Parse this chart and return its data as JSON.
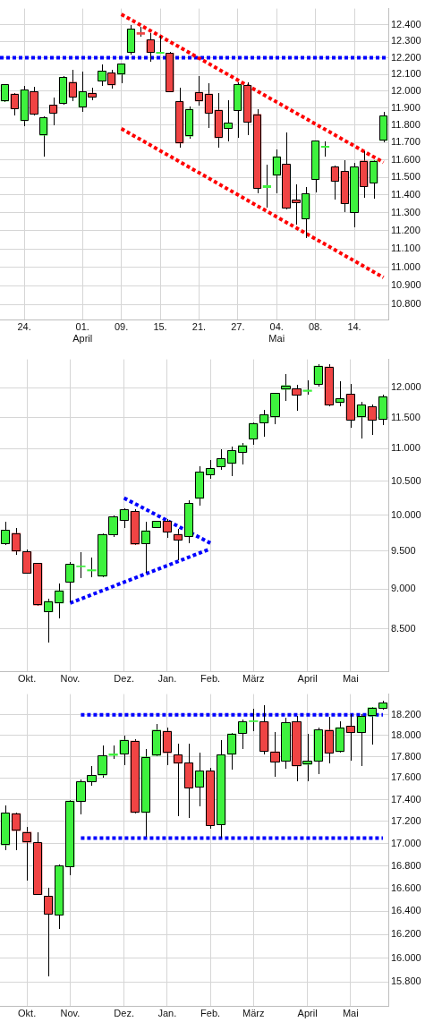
{
  "chart_data": [
    {
      "type": "candlestick",
      "categories": [
        null,
        null,
        "24.",
        null,
        null,
        null,
        null,
        null,
        "01.\nApril",
        null,
        null,
        null,
        "09.",
        null,
        null,
        null,
        "15.",
        null,
        null,
        null,
        "21.",
        null,
        null,
        null,
        "27.",
        null,
        null,
        null,
        "04.\nMai",
        null,
        null,
        null,
        "08.",
        null,
        null,
        null,
        "14.",
        null,
        null,
        null
      ],
      "ohlc": [
        [
          11940,
          12040,
          11940,
          12040
        ],
        [
          11985,
          11985,
          11860,
          11895
        ],
        [
          11825,
          12030,
          11795,
          12010
        ],
        [
          12000,
          12025,
          11860,
          11865
        ],
        [
          11740,
          11850,
          11620,
          11845
        ],
        [
          11920,
          11960,
          11800,
          11870
        ],
        [
          11925,
          12090,
          11925,
          12085
        ],
        [
          12055,
          12125,
          11945,
          11965
        ],
        [
          11905,
          12115,
          11880,
          12000
        ],
        [
          11990,
          12020,
          11950,
          11965
        ],
        [
          12060,
          12155,
          12035,
          12120
        ],
        [
          12110,
          12125,
          12020,
          12035
        ],
        [
          12100,
          12165,
          12050,
          12165
        ],
        [
          12230,
          12395,
          12220,
          12375
        ],
        [
          12355,
          12385,
          12330,
          12340
        ],
        [
          12310,
          12345,
          12180,
          12230
        ],
        [
          12225,
          12330,
          12225,
          12235
        ],
        [
          12230,
          12230,
          11995,
          11995
        ],
        [
          11940,
          12020,
          11675,
          11695
        ],
        [
          11735,
          11905,
          11725,
          11895
        ],
        [
          11995,
          12085,
          11915,
          11940
        ],
        [
          11985,
          12045,
          11785,
          11870
        ],
        [
          11890,
          11985,
          11675,
          11725
        ],
        [
          11780,
          11945,
          11710,
          11815
        ],
        [
          11885,
          12050,
          11730,
          12040
        ],
        [
          12035,
          12050,
          11745,
          11815
        ],
        [
          11865,
          11890,
          11410,
          11435
        ],
        [
          11440,
          11570,
          11330,
          11455
        ],
        [
          11510,
          11655,
          11410,
          11620
        ],
        [
          11575,
          11755,
          11320,
          11325
        ],
        [
          11375,
          11460,
          11235,
          11355
        ],
        [
          11265,
          11440,
          11165,
          11410
        ],
        [
          11485,
          11710,
          11415,
          11710
        ],
        [
          11670,
          11705,
          11620,
          11680
        ],
        [
          11560,
          11565,
          11375,
          11475
        ],
        [
          11535,
          11595,
          11305,
          11350
        ],
        [
          11300,
          11580,
          11220,
          11560
        ],
        [
          11595,
          11645,
          11385,
          11445
        ],
        [
          11465,
          11595,
          11380,
          11595
        ],
        [
          11710,
          11875,
          11705,
          11855
        ]
      ],
      "colors": [
        "#3ef23e",
        "#f04444",
        "#3ef23e",
        "#f04444",
        "#3ef23e",
        "#f04444",
        "#3ef23e",
        "#f04444",
        "#3ef23e",
        "#f04444",
        "#3ef23e",
        "#f04444",
        "#3ef23e",
        "#3ef23e",
        "#f04444",
        "#f04444",
        "#3ef23e",
        "#f04444",
        "#f04444",
        "#3ef23e",
        "#f04444",
        "#f04444",
        "#f04444",
        "#3ef23e",
        "#3ef23e",
        "#f04444",
        "#f04444",
        "#3ef23e",
        "#3ef23e",
        "#f04444",
        "#f04444",
        "#3ef23e",
        "#3ef23e",
        "#3ef23e",
        "#f04444",
        "#f04444",
        "#3ef23e",
        "#f04444",
        "#3ef23e",
        "#3ef23e"
      ],
      "series": [
        {
          "type": "line",
          "color": "#ff0000",
          "line_style": "dotted",
          "values": [
            null,
            null,
            null,
            null,
            null,
            null,
            null,
            null,
            null,
            null,
            null,
            null,
            12465,
            null,
            null,
            null,
            null,
            null,
            null,
            null,
            null,
            null,
            null,
            null,
            null,
            null,
            null,
            null,
            null,
            null,
            null,
            null,
            null,
            null,
            null,
            null,
            null,
            null,
            null,
            11585
          ]
        },
        {
          "type": "line",
          "color": "#ff0000",
          "line_style": "dotted",
          "values": [
            null,
            null,
            null,
            null,
            null,
            null,
            null,
            null,
            null,
            null,
            null,
            null,
            11780,
            null,
            null,
            null,
            null,
            null,
            null,
            null,
            null,
            null,
            null,
            null,
            null,
            null,
            null,
            null,
            null,
            null,
            null,
            null,
            null,
            null,
            null,
            null,
            null,
            null,
            null,
            10945
          ]
        }
      ],
      "ref_lines": [
        {
          "axis": "y",
          "value": 12200,
          "color": "#0000ff",
          "line_style": "dotted"
        }
      ],
      "ylim": [
        10720,
        12500
      ],
      "log": true,
      "grid": true,
      "yticks": [
        {
          "value": 10800,
          "label": "10.800"
        },
        {
          "value": 10900,
          "label": "10.900"
        },
        {
          "value": 11000,
          "label": "11.000"
        },
        {
          "value": 11100,
          "label": "11.100"
        },
        {
          "value": 11200,
          "label": "11.200"
        },
        {
          "value": 11300,
          "label": "11.300"
        },
        {
          "value": 11400,
          "label": "11.400"
        },
        {
          "value": 11500,
          "label": "11.500"
        },
        {
          "value": 11600,
          "label": "11.600"
        },
        {
          "value": 11700,
          "label": "11.700"
        },
        {
          "value": 11800,
          "label": "11.800"
        },
        {
          "value": 11900,
          "label": "11.900"
        },
        {
          "value": 12000,
          "label": "12.000"
        },
        {
          "value": 12100,
          "label": "12.100"
        },
        {
          "value": 12200,
          "label": "12.200"
        },
        {
          "value": 12300,
          "label": "12.300"
        },
        {
          "value": 12400,
          "label": "12.400"
        }
      ]
    },
    {
      "type": "candlestick",
      "categories": [
        null,
        null,
        "Okt.",
        null,
        null,
        null,
        "Nov.",
        null,
        null,
        null,
        null,
        "Dez.",
        null,
        null,
        null,
        "Jan.",
        null,
        null,
        null,
        "Feb.",
        null,
        null,
        null,
        "März",
        null,
        null,
        null,
        null,
        "April",
        null,
        null,
        null,
        "Mai",
        null,
        null,
        null
      ],
      "ohlc": [
        [
          9600,
          9900,
          9585,
          9795
        ],
        [
          9750,
          9815,
          9455,
          9495
        ],
        [
          9495,
          9520,
          9200,
          9200
        ],
        [
          9340,
          9340,
          8790,
          8790
        ],
        [
          8705,
          8865,
          8345,
          8845
        ],
        [
          8815,
          9065,
          8630,
          8980
        ],
        [
          9085,
          9345,
          8830,
          9325
        ],
        [
          9285,
          9475,
          9150,
          9305
        ],
        [
          9230,
          9405,
          9160,
          9255
        ],
        [
          9160,
          9735,
          9160,
          9735
        ],
        [
          9725,
          9995,
          9705,
          9985
        ],
        [
          9920,
          10095,
          9825,
          10085
        ],
        [
          10060,
          10085,
          9590,
          9590
        ],
        [
          9600,
          9900,
          9220,
          9785
        ],
        [
          9820,
          9920,
          9820,
          9920
        ],
        [
          9920,
          9940,
          9685,
          9760
        ],
        [
          9735,
          9795,
          9385,
          9645
        ],
        [
          9700,
          10215,
          9620,
          10175
        ],
        [
          10240,
          10720,
          10145,
          10645
        ],
        [
          10590,
          10810,
          10545,
          10700
        ],
        [
          10720,
          10985,
          10680,
          10845
        ],
        [
          10765,
          11020,
          10590,
          10975
        ],
        [
          10940,
          11080,
          10765,
          11055
        ],
        [
          11150,
          11410,
          11065,
          11410
        ],
        [
          11410,
          11615,
          11195,
          11555
        ],
        [
          11505,
          11910,
          11405,
          11910
        ],
        [
          11970,
          12240,
          11785,
          12045
        ],
        [
          11985,
          12045,
          11625,
          11875
        ],
        [
          11935,
          12125,
          11885,
          11970
        ],
        [
          12060,
          12405,
          12035,
          12385
        ],
        [
          12370,
          12405,
          11690,
          11705
        ],
        [
          11745,
          12100,
          11690,
          11820
        ],
        [
          11895,
          12060,
          11340,
          11455
        ],
        [
          11505,
          11760,
          11170,
          11715
        ],
        [
          11690,
          11715,
          11220,
          11455
        ],
        [
          11470,
          11875,
          11380,
          11860
        ]
      ],
      "colors": [
        "#3ef23e",
        "#f04444",
        "#f04444",
        "#f04444",
        "#3ef23e",
        "#3ef23e",
        "#3ef23e",
        "#3ef23e",
        "#3ef23e",
        "#3ef23e",
        "#3ef23e",
        "#3ef23e",
        "#f04444",
        "#3ef23e",
        "#3ef23e",
        "#f04444",
        "#f04444",
        "#3ef23e",
        "#3ef23e",
        "#3ef23e",
        "#3ef23e",
        "#3ef23e",
        "#3ef23e",
        "#3ef23e",
        "#3ef23e",
        "#3ef23e",
        "#3ef23e",
        "#f04444",
        "#3ef23e",
        "#3ef23e",
        "#f04444",
        "#3ef23e",
        "#f04444",
        "#3ef23e",
        "#f04444",
        "#3ef23e"
      ],
      "series": [
        {
          "type": "line",
          "color": "#0000ff",
          "line_style": "dotted",
          "values": [
            null,
            null,
            null,
            null,
            null,
            null,
            null,
            null,
            null,
            null,
            null,
            10250,
            null,
            null,
            null,
            null,
            null,
            null,
            null,
            9610,
            null,
            null,
            null,
            null,
            null,
            null,
            null,
            null,
            null,
            null,
            null,
            null,
            null,
            null,
            null,
            null
          ]
        },
        {
          "type": "line",
          "color": "#0000ff",
          "line_style": "dotted",
          "values": [
            null,
            null,
            null,
            null,
            null,
            null,
            8820,
            null,
            null,
            null,
            null,
            null,
            null,
            null,
            null,
            null,
            null,
            null,
            null,
            9530,
            null,
            null,
            null,
            null,
            null,
            null,
            null,
            null,
            null,
            null,
            null,
            null,
            null,
            null,
            null,
            null
          ]
        }
      ],
      "ylim": [
        8000,
        12500
      ],
      "log": true,
      "grid": true,
      "yticks": [
        {
          "value": 8500,
          "label": "8.500"
        },
        {
          "value": 9000,
          "label": "9.000"
        },
        {
          "value": 9500,
          "label": "9.500"
        },
        {
          "value": 10000,
          "label": "10.000"
        },
        {
          "value": 10500,
          "label": "10.500"
        },
        {
          "value": 11000,
          "label": "11.000"
        },
        {
          "value": 11500,
          "label": "11.500"
        },
        {
          "value": 12000,
          "label": "12.000"
        }
      ]
    },
    {
      "type": "candlestick",
      "categories": [
        null,
        null,
        "Okt.",
        null,
        null,
        null,
        "Nov.",
        null,
        null,
        null,
        null,
        "Dez.",
        null,
        null,
        null,
        "Jan.",
        null,
        null,
        null,
        "Feb.",
        null,
        null,
        null,
        "März",
        null,
        null,
        null,
        null,
        "April",
        null,
        null,
        null,
        "Mai",
        null,
        null,
        null
      ],
      "ohlc": [
        [
          16985,
          17345,
          16945,
          17280
        ],
        [
          17275,
          17275,
          16945,
          17115
        ],
        [
          17105,
          17145,
          16670,
          17010
        ],
        [
          17010,
          17100,
          16545,
          16545
        ],
        [
          16535,
          16600,
          15850,
          16375
        ],
        [
          16365,
          16805,
          16255,
          16805
        ],
        [
          16790,
          17395,
          16725,
          17390
        ],
        [
          17380,
          17585,
          17265,
          17570
        ],
        [
          17565,
          17705,
          17530,
          17625
        ],
        [
          17625,
          17900,
          17605,
          17810
        ],
        [
          17810,
          17900,
          17780,
          17830
        ],
        [
          17825,
          17995,
          17725,
          17960
        ],
        [
          17950,
          17960,
          17280,
          17280
        ],
        [
          17280,
          17870,
          17065,
          17800
        ],
        [
          17810,
          18105,
          17810,
          18055
        ],
        [
          18045,
          18075,
          17725,
          17835
        ],
        [
          17820,
          17920,
          17255,
          17735
        ],
        [
          17745,
          17920,
          17235,
          17505
        ],
        [
          17515,
          17835,
          17340,
          17670
        ],
        [
          17670,
          17695,
          17135,
          17160
        ],
        [
          17170,
          17955,
          17055,
          17820
        ],
        [
          17820,
          18020,
          17680,
          18020
        ],
        [
          18020,
          18150,
          17875,
          18135
        ],
        [
          18130,
          18250,
          18050,
          18145
        ],
        [
          18135,
          18290,
          17825,
          17850
        ],
        [
          17850,
          18030,
          17620,
          17745
        ],
        [
          17755,
          18170,
          17690,
          18125
        ],
        [
          18135,
          18180,
          17575,
          17710
        ],
        [
          17725,
          18010,
          17575,
          17760
        ],
        [
          17755,
          18070,
          17640,
          18060
        ],
        [
          18055,
          18175,
          17740,
          17830
        ],
        [
          17845,
          18135,
          17845,
          18080
        ],
        [
          18095,
          18200,
          17765,
          18025
        ],
        [
          18025,
          18205,
          17720,
          18185
        ],
        [
          18185,
          18270,
          17920,
          18270
        ],
        [
          18260,
          18335,
          18250,
          18315
        ]
      ],
      "colors": [
        "#3ef23e",
        "#f04444",
        "#f04444",
        "#f04444",
        "#f04444",
        "#3ef23e",
        "#3ef23e",
        "#3ef23e",
        "#3ef23e",
        "#3ef23e",
        "#3ef23e",
        "#3ef23e",
        "#f04444",
        "#3ef23e",
        "#3ef23e",
        "#f04444",
        "#f04444",
        "#f04444",
        "#3ef23e",
        "#f04444",
        "#3ef23e",
        "#3ef23e",
        "#3ef23e",
        "#3ef23e",
        "#f04444",
        "#f04444",
        "#3ef23e",
        "#f04444",
        "#3ef23e",
        "#3ef23e",
        "#f04444",
        "#3ef23e",
        "#f04444",
        "#3ef23e",
        "#3ef23e",
        "#3ef23e"
      ],
      "series": [
        {
          "type": "line",
          "color": "#0000ff",
          "line_style": "dotted",
          "values": [
            null,
            null,
            null,
            null,
            null,
            null,
            null,
            18200,
            null,
            null,
            null,
            null,
            null,
            null,
            null,
            null,
            null,
            null,
            null,
            null,
            null,
            null,
            null,
            null,
            null,
            null,
            null,
            null,
            null,
            null,
            null,
            null,
            null,
            null,
            null,
            18200
          ]
        },
        {
          "type": "line",
          "color": "#0000ff",
          "line_style": "dotted",
          "values": [
            null,
            null,
            null,
            null,
            null,
            null,
            null,
            17050,
            null,
            null,
            null,
            null,
            null,
            null,
            null,
            null,
            null,
            null,
            null,
            null,
            null,
            null,
            null,
            null,
            null,
            null,
            null,
            null,
            null,
            null,
            null,
            null,
            null,
            null,
            null,
            17050
          ]
        }
      ],
      "ylim": [
        15600,
        18400
      ],
      "log": true,
      "grid": true,
      "yticks": [
        {
          "value": 15800,
          "label": "15.800"
        },
        {
          "value": 16000,
          "label": "16.000"
        },
        {
          "value": 16200,
          "label": "16.200"
        },
        {
          "value": 16400,
          "label": "16.400"
        },
        {
          "value": 16600,
          "label": "16.600"
        },
        {
          "value": 16800,
          "label": "16.800"
        },
        {
          "value": 17000,
          "label": "17.000"
        },
        {
          "value": 17200,
          "label": "17.200"
        },
        {
          "value": 17400,
          "label": "17.400"
        },
        {
          "value": 17600,
          "label": "17.600"
        },
        {
          "value": 17800,
          "label": "17.800"
        },
        {
          "value": 18000,
          "label": "18.000"
        },
        {
          "value": 18200,
          "label": "18.200"
        }
      ]
    }
  ]
}
